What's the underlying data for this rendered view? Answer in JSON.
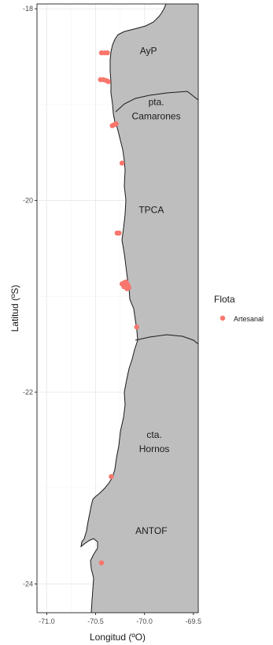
{
  "chart_data": {
    "type": "scatter",
    "xlabel": "Longitud (ºO)",
    "ylabel": "Latitud (ºS)",
    "xlim": [
      -71.1,
      -69.45
    ],
    "ylim": [
      -24.3,
      -17.95
    ],
    "x_ticks": [
      {
        "value": -71.0,
        "label": "-71.0"
      },
      {
        "value": -70.5,
        "label": "-70.5"
      },
      {
        "value": -70.0,
        "label": "-70.0"
      },
      {
        "value": -69.5,
        "label": "-69.5"
      }
    ],
    "y_ticks": [
      {
        "value": -18,
        "label": "-18"
      },
      {
        "value": -20,
        "label": "-20"
      },
      {
        "value": -22,
        "label": "-22"
      },
      {
        "value": -24,
        "label": "-24"
      }
    ],
    "grid": true,
    "legend": {
      "title": "Flota",
      "position": "right",
      "entries": [
        {
          "label": "Artesanal",
          "color": "#f8766d"
        }
      ]
    },
    "land_color": "#bebebe",
    "regions": [
      {
        "name": "AyP",
        "lines": [
          "AyP"
        ],
        "lon": -69.96,
        "lat": -18.47
      },
      {
        "name": "pta. Camarones",
        "lines": [
          "pta.",
          "Camarones"
        ],
        "lon": -69.88,
        "lat": -19.08
      },
      {
        "name": "TPCA",
        "lines": [
          "TPCA"
        ],
        "lon": -69.93,
        "lat": -20.13
      },
      {
        "name": "cta. Hornos",
        "lines": [
          "cta.",
          "Hornos"
        ],
        "lon": -69.9,
        "lat": -22.55
      },
      {
        "name": "ANTOF",
        "lines": [
          "ANTOF"
        ],
        "lon": -69.93,
        "lat": -23.48
      }
    ],
    "series": [
      {
        "name": "Artesanal",
        "color": "#f8766d",
        "points": [
          {
            "x": -70.44,
            "y": -18.46
          },
          {
            "x": -70.41,
            "y": -18.46
          },
          {
            "x": -70.38,
            "y": -18.46
          },
          {
            "x": -70.45,
            "y": -18.74
          },
          {
            "x": -70.42,
            "y": -18.74
          },
          {
            "x": -70.39,
            "y": -18.75
          },
          {
            "x": -70.37,
            "y": -18.76
          },
          {
            "x": -70.33,
            "y": -19.22
          },
          {
            "x": -70.31,
            "y": -19.21
          },
          {
            "x": -70.29,
            "y": -19.2
          },
          {
            "x": -70.23,
            "y": -19.61
          },
          {
            "x": -70.28,
            "y": -20.34
          },
          {
            "x": -70.26,
            "y": -20.34
          },
          {
            "x": -70.23,
            "y": -20.87
          },
          {
            "x": -70.21,
            "y": -20.86
          },
          {
            "x": -70.19,
            "y": -20.85
          },
          {
            "x": -70.17,
            "y": -20.88
          },
          {
            "x": -70.16,
            "y": -20.91
          },
          {
            "x": -70.21,
            "y": -20.9
          },
          {
            "x": -70.18,
            "y": -20.92
          },
          {
            "x": -70.08,
            "y": -21.32
          },
          {
            "x": -70.34,
            "y": -22.88
          },
          {
            "x": -70.44,
            "y": -23.78
          }
        ]
      }
    ]
  }
}
